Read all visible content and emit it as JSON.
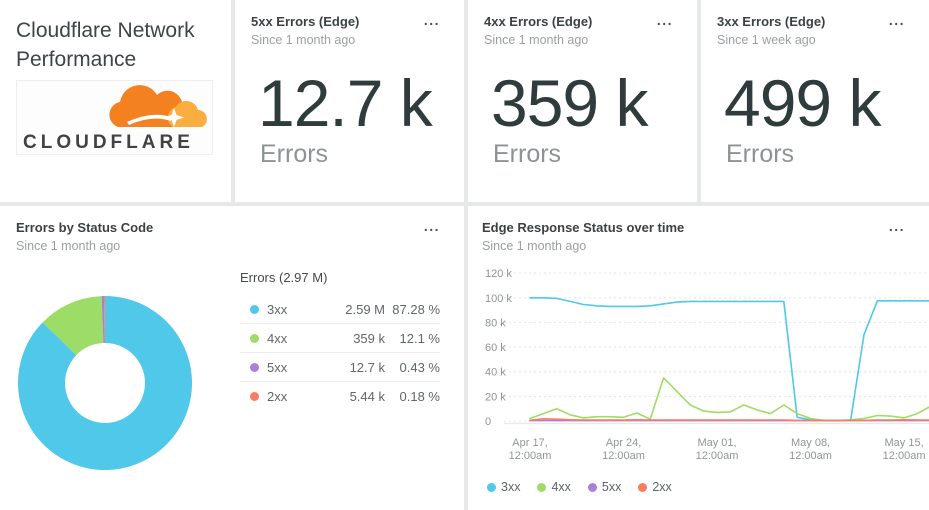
{
  "ui": {
    "menu_glyph": "..."
  },
  "title_card": {
    "title": "Cloudflare Network Performance",
    "logo_text": "CLOUDFLARE"
  },
  "metric_cards": [
    {
      "title": "5xx Errors (Edge)",
      "subtitle": "Since 1 month ago",
      "value": "12.7 k",
      "unit": "Errors"
    },
    {
      "title": "4xx Errors (Edge)",
      "subtitle": "Since 1 month ago",
      "value": "359 k",
      "unit": "Errors"
    },
    {
      "title": "3xx Errors (Edge)",
      "subtitle": "Since 1 week ago",
      "value": "499 k",
      "unit": "Errors"
    }
  ],
  "colors": {
    "cloudflare_orange": "#f48120",
    "cloudflare_orange_light": "#faad40",
    "status_3xx": "#4fc8ea",
    "status_4xx": "#9edc68",
    "status_5xx": "#a97fd8",
    "status_2xx": "#f87c5f"
  },
  "chart_data": [
    {
      "type": "pie",
      "title": "Errors by Status Code",
      "subtitle": "Since 1 month ago",
      "donut": true,
      "total_label": "Errors (2.97 M)",
      "slices": [
        {
          "label": "3xx",
          "value": "2.59 M",
          "percent": 87.28,
          "percent_label": "87.28 %",
          "color": "#4fc8ea"
        },
        {
          "label": "4xx",
          "value": "359 k",
          "percent": 12.1,
          "percent_label": "12.1 %",
          "color": "#9edc68"
        },
        {
          "label": "5xx",
          "value": "12.7 k",
          "percent": 0.43,
          "percent_label": "0.43 %",
          "color": "#a97fd8"
        },
        {
          "label": "2xx",
          "value": "5.44 k",
          "percent": 0.18,
          "percent_label": "0.18 %",
          "color": "#f87c5f"
        }
      ]
    },
    {
      "type": "line",
      "title": "Edge Response Status over time",
      "subtitle": "Since 1 month ago",
      "grid": "dashed-horizontal",
      "legend_position": "bottom-left",
      "ylim_k": [
        0,
        120
      ],
      "y_ticks_k": [
        0,
        20,
        40,
        60,
        80,
        100,
        120
      ],
      "y_tick_labels": [
        "0",
        "20 k",
        "40 k",
        "60 k",
        "80 k",
        "100 k",
        "120 k"
      ],
      "x_tick_days": [
        0,
        7,
        14,
        21,
        28
      ],
      "x_tick_labels": [
        [
          "Apr 17,",
          "12:00am"
        ],
        [
          "Apr 24,",
          "12:00am"
        ],
        [
          "May 01,",
          "12:00am"
        ],
        [
          "May 08,",
          "12:00am"
        ],
        [
          "May 15,",
          "12:00am"
        ]
      ],
      "series": [
        {
          "name": "3xx",
          "color": "#4fc8ea",
          "values_k": [
            100,
            100,
            99.5,
            97,
            94.5,
            93.5,
            93,
            93,
            93,
            93.5,
            95,
            96.5,
            97,
            97,
            97,
            97,
            97,
            97,
            97,
            97,
            3,
            1,
            0.6,
            0.5,
            0.5,
            70,
            97.5,
            97.5,
            97.5,
            97.5,
            97.5
          ]
        },
        {
          "name": "4xx",
          "color": "#9edc68",
          "values_k": [
            2,
            6,
            10,
            5,
            2.5,
            3.5,
            3.5,
            3,
            6.5,
            1.5,
            35,
            24,
            13,
            8,
            7,
            7.5,
            13,
            9,
            6,
            13,
            6,
            2,
            0.5,
            0.4,
            1,
            2,
            4.5,
            4,
            2.5,
            6,
            12
          ]
        },
        {
          "name": "5xx",
          "color": "#a97fd8",
          "values_k": [
            0.3,
            0.3,
            0.3,
            0.3,
            0.3,
            0.3,
            0.3,
            0.3,
            0.3,
            0.3,
            0.3,
            0.3,
            0.3,
            0.3,
            0.3,
            0.3,
            0.3,
            0.3,
            0.3,
            0.3,
            0.3,
            0.3,
            0.3,
            0.3,
            0.3,
            0.3,
            0.3,
            0.3,
            0.3,
            0.3,
            0.3
          ]
        },
        {
          "name": "2xx",
          "color": "#f87c5f",
          "values_k": [
            0.6,
            1.8,
            1.5,
            1,
            0.8,
            0.8,
            0.8,
            0.8,
            1,
            0.8,
            0.8,
            0.8,
            0.8,
            0.8,
            0.8,
            0.8,
            0.8,
            0.8,
            0.8,
            0.8,
            0.5,
            0.3,
            0.3,
            0.3,
            0.3,
            0.5,
            0.8,
            0.8,
            1,
            0.8,
            0.8
          ]
        }
      ]
    }
  ]
}
